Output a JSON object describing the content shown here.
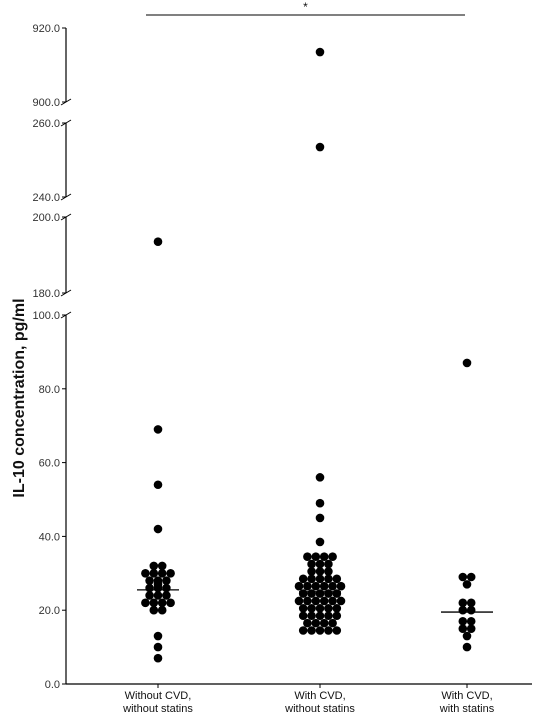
{
  "chart_data": {
    "type": "scatter",
    "ylabel": "IL-10 concentration, pg/ml",
    "categories": [
      [
        "Without CVD,",
        "without statins"
      ],
      [
        "With CVD,",
        "without statins"
      ],
      [
        "With CVD,",
        "with statins"
      ]
    ],
    "y_segments": [
      {
        "range": [
          0,
          100
        ],
        "ticks": [
          0,
          20,
          40,
          60,
          80,
          100
        ],
        "tick_labels": [
          "0.0",
          "20.0",
          "40.0",
          "60.0",
          "80.0",
          "100.0"
        ]
      },
      {
        "range": [
          180,
          200
        ],
        "ticks": [
          180,
          200
        ],
        "tick_labels": [
          "180.0",
          "200.0"
        ]
      },
      {
        "range": [
          240,
          260
        ],
        "ticks": [
          240,
          260
        ],
        "tick_labels": [
          "240.0",
          "260.0"
        ]
      },
      {
        "range": [
          900,
          920
        ],
        "ticks": [
          900,
          920
        ],
        "tick_labels": [
          "900.0",
          "920.0"
        ]
      }
    ],
    "series": [
      {
        "medians": [
          25.5,
          25.0,
          19.5
        ],
        "points": [
          [
            7,
            10,
            13,
            20,
            20,
            22,
            22,
            22,
            22,
            24,
            24,
            24,
            26,
            26,
            26,
            27,
            28,
            28,
            28,
            30,
            30,
            30,
            30,
            32,
            32,
            42,
            54,
            69,
            193.5
          ],
          [
            14.5,
            14.5,
            14.5,
            14.5,
            14.5,
            16.5,
            16.5,
            16.5,
            16.5,
            18.5,
            18.5,
            18.5,
            18.5,
            18.5,
            20.5,
            20.5,
            20.5,
            20.5,
            20.5,
            22.5,
            22.5,
            22.5,
            22.5,
            22.5,
            22.5,
            24.5,
            24.5,
            24.5,
            24.5,
            24.5,
            26.5,
            26.5,
            26.5,
            26.5,
            26.5,
            26.5,
            28.5,
            28.5,
            28.5,
            28.5,
            28.5,
            30.5,
            30.5,
            30.5,
            32.5,
            32.5,
            32.5,
            34.5,
            34.5,
            34.5,
            34.5,
            38.5,
            45,
            49,
            56,
            253.5,
            913.5
          ],
          [
            10,
            13,
            15,
            15,
            17,
            17,
            20,
            20,
            22,
            22,
            27,
            29,
            29,
            87
          ]
        ]
      }
    ],
    "significance": {
      "from": 0,
      "to": 2,
      "label": "*"
    },
    "grid": false
  }
}
